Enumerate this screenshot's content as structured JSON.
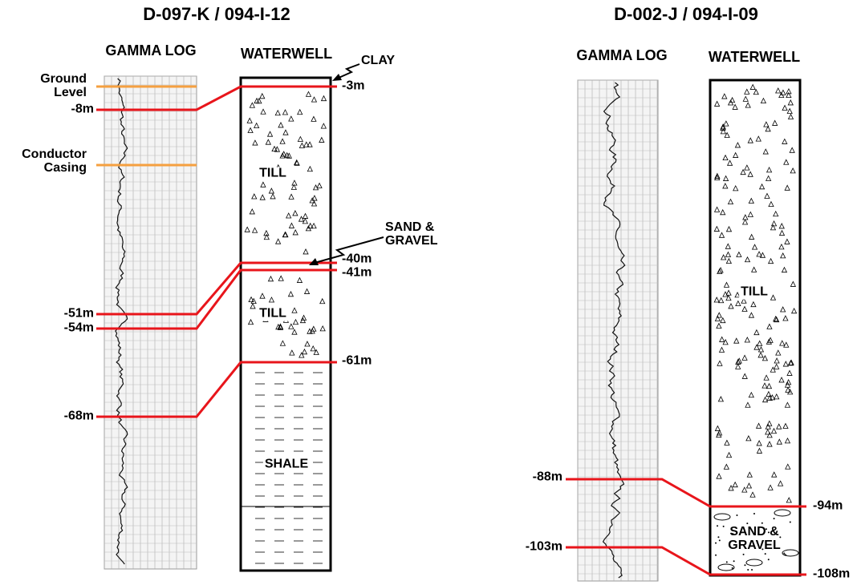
{
  "left": {
    "title": "D-097-K / 094-I-12",
    "gamma_log_label": "GAMMA LOG",
    "waterwell_label": "WATERWELL",
    "log_labels": [
      "Ground Level",
      "-8m",
      "Conductor Casing",
      "-51m",
      "-54m",
      "-68m"
    ],
    "well_depths": [
      "-3m",
      "-40m",
      "-41m",
      "-61m"
    ],
    "layers": [
      "TILL",
      "TILL",
      "SHALE"
    ],
    "annotations": [
      "CLAY",
      "SAND & GRAVEL"
    ]
  },
  "right": {
    "title": "D-002-J / 094-I-09",
    "gamma_log_label": "GAMMA LOG",
    "waterwell_label": "WATERWELL",
    "log_labels": [
      "-88m",
      "-103m"
    ],
    "well_depths": [
      "-94m",
      "-108m"
    ],
    "layers": [
      "TILL",
      "SAND & GRAVEL"
    ]
  }
}
